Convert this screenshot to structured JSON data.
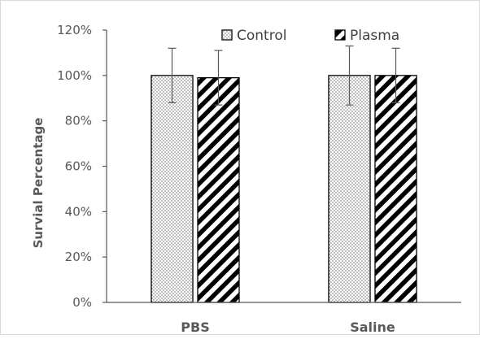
{
  "chart_data": {
    "type": "bar",
    "categories": [
      "PBS",
      "Saline"
    ],
    "series": [
      {
        "name": "Control",
        "pattern": "dots",
        "values": [
          100,
          100
        ],
        "error": [
          12,
          13
        ]
      },
      {
        "name": "Plasma",
        "pattern": "diagonal-stripes",
        "values": [
          99,
          100
        ],
        "error": [
          12,
          12
        ]
      }
    ],
    "ylabel": "Survial Percentage",
    "yticks": [
      "0%",
      "20%",
      "40%",
      "60%",
      "80%",
      "100%",
      "120%"
    ],
    "ylim": [
      0,
      120
    ],
    "legend_position": "top-right",
    "grid": false,
    "colors": {
      "axis": "#595959",
      "bar_edge": "#000000",
      "fill": "#000000",
      "background": "#ffffff"
    }
  }
}
